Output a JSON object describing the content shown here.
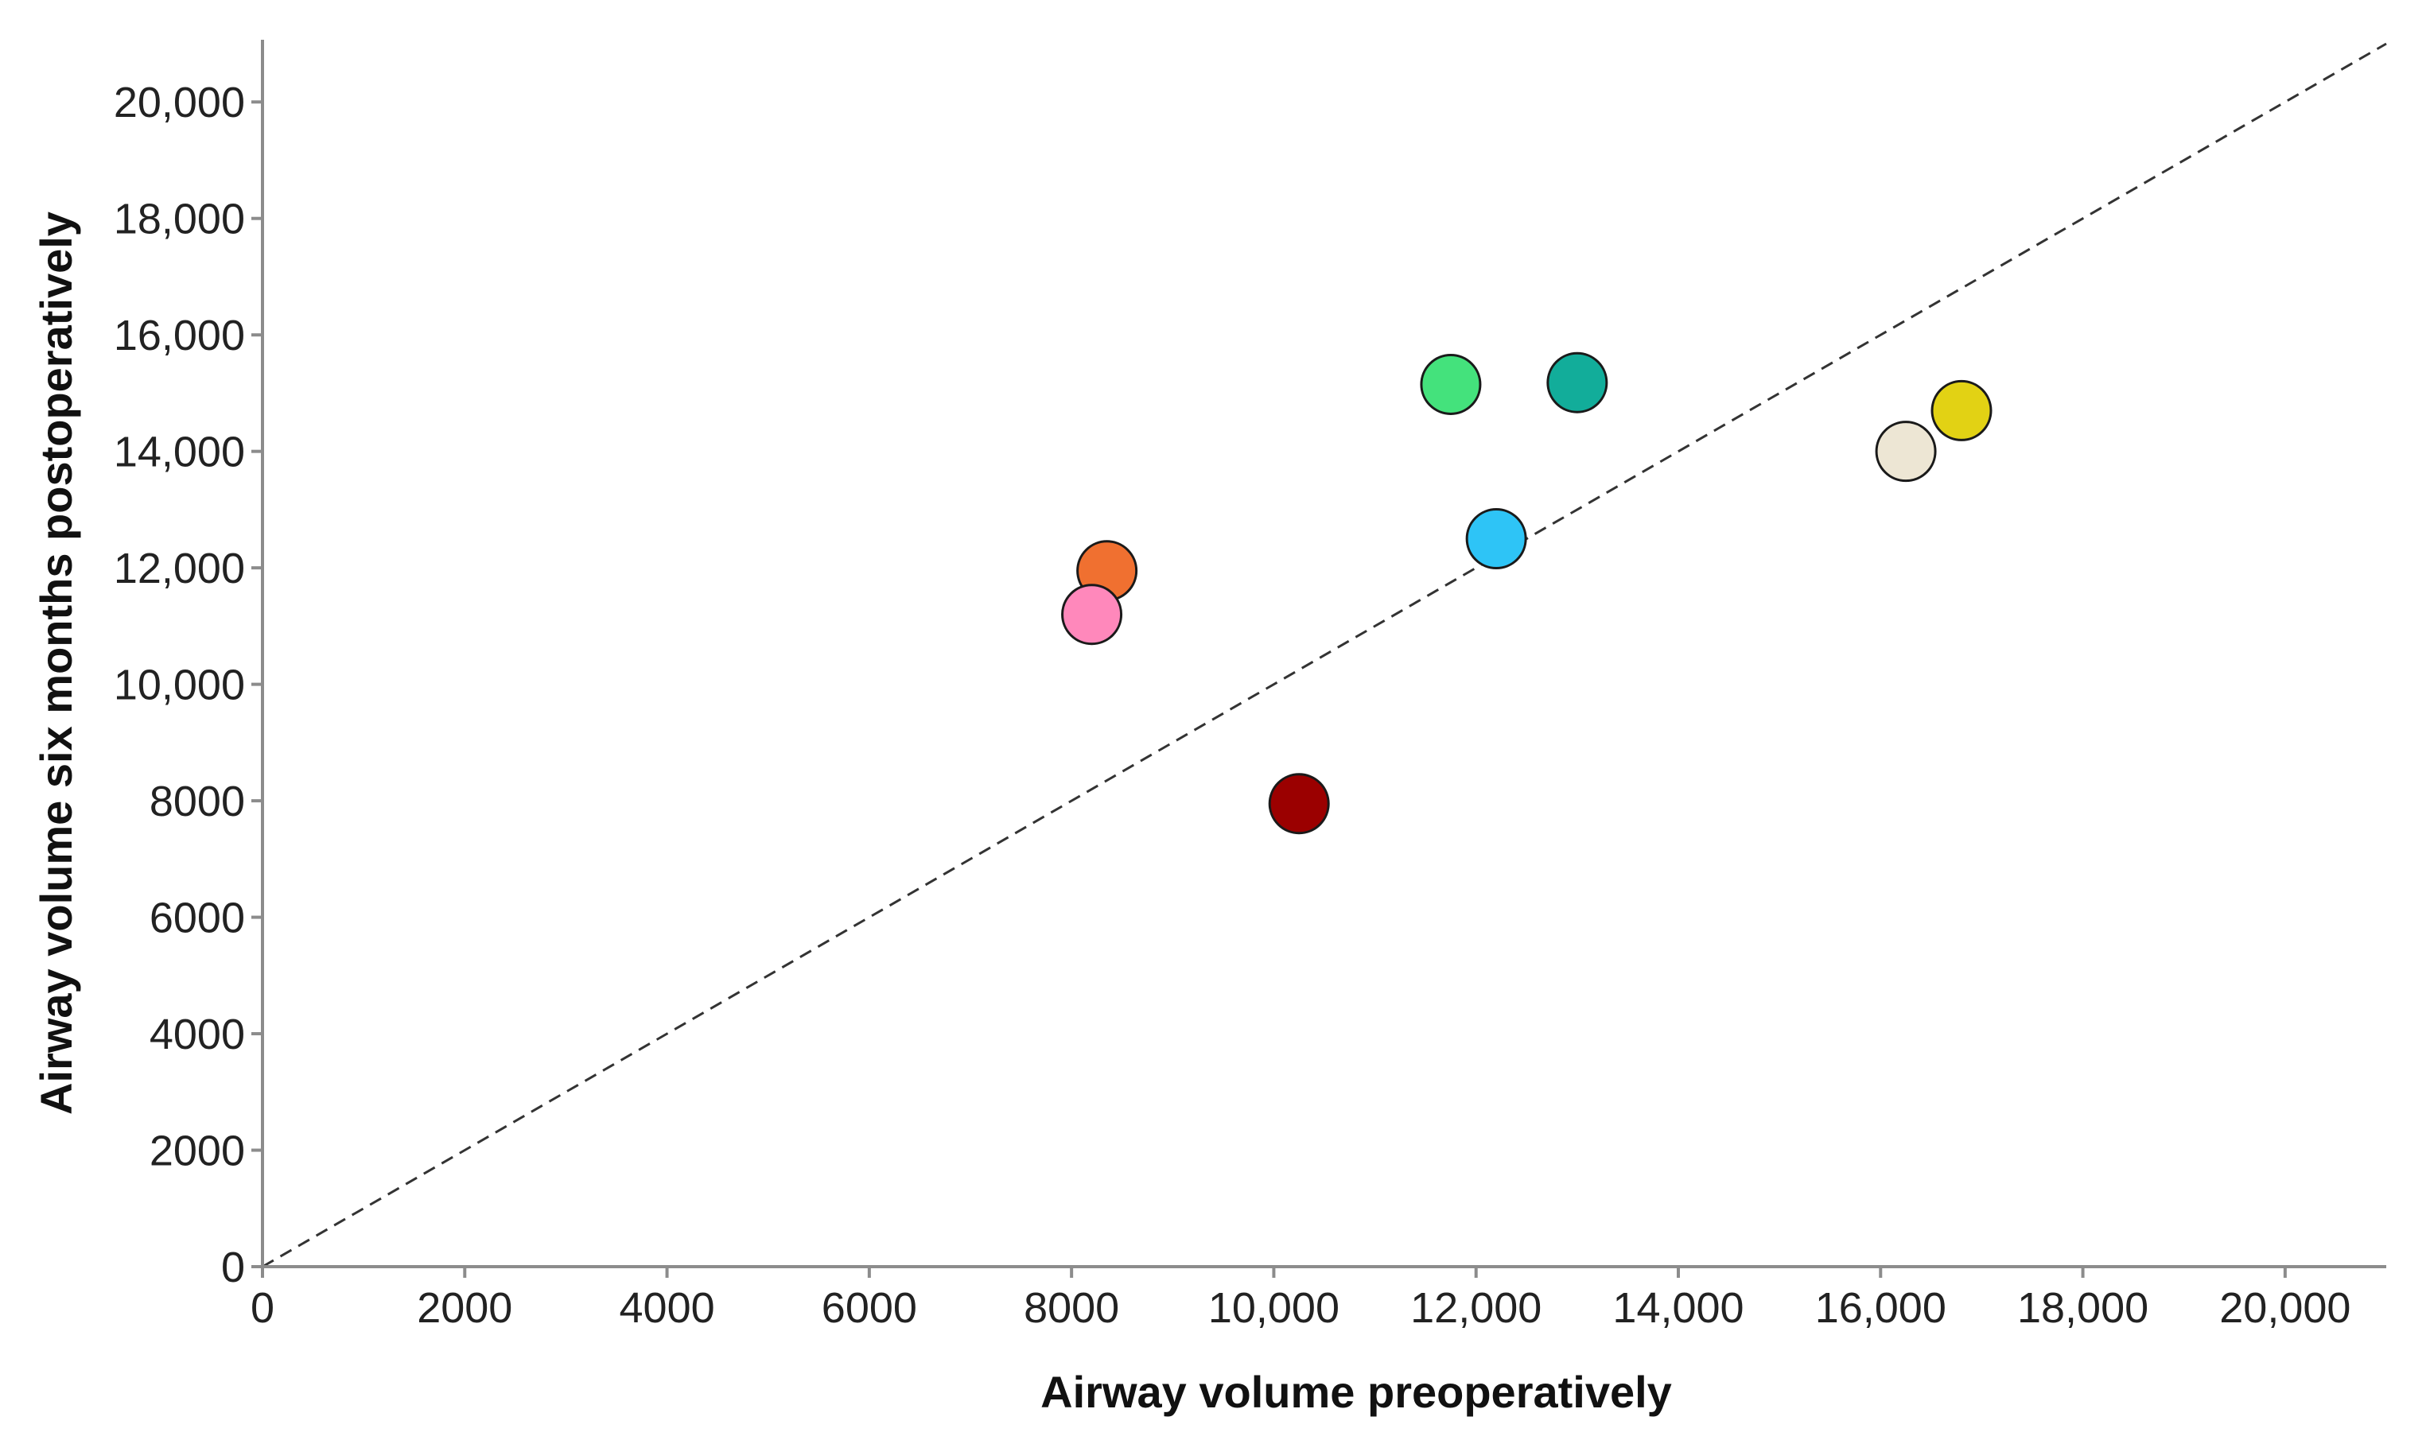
{
  "chart_data": {
    "type": "scatter",
    "title": "",
    "xlabel": "Airway volume preoperatively",
    "ylabel": "Airway volume six months postoperatively",
    "xlim": [
      0,
      21000
    ],
    "ylim": [
      0,
      21000
    ],
    "xticks": [
      {
        "value": 0,
        "label": "0"
      },
      {
        "value": 2000,
        "label": "2000"
      },
      {
        "value": 4000,
        "label": "4000"
      },
      {
        "value": 6000,
        "label": "6000"
      },
      {
        "value": 8000,
        "label": "8000"
      },
      {
        "value": 10000,
        "label": "10,000"
      },
      {
        "value": 12000,
        "label": "12,000"
      },
      {
        "value": 14000,
        "label": "14,000"
      },
      {
        "value": 16000,
        "label": "16,000"
      },
      {
        "value": 18000,
        "label": "18,000"
      },
      {
        "value": 20000,
        "label": "20,000"
      }
    ],
    "yticks": [
      {
        "value": 0,
        "label": "0"
      },
      {
        "value": 2000,
        "label": "2000"
      },
      {
        "value": 4000,
        "label": "4000"
      },
      {
        "value": 6000,
        "label": "6000"
      },
      {
        "value": 8000,
        "label": "8000"
      },
      {
        "value": 10000,
        "label": "10,000"
      },
      {
        "value": 12000,
        "label": "12,000"
      },
      {
        "value": 14000,
        "label": "14,000"
      },
      {
        "value": 16000,
        "label": "16,000"
      },
      {
        "value": 18000,
        "label": "18,000"
      },
      {
        "value": 20000,
        "label": "20,000"
      }
    ],
    "reference_line": {
      "type": "identity",
      "style": "dashed",
      "x": [
        0,
        21000
      ],
      "y": [
        0,
        21000
      ]
    },
    "grid": false,
    "points": [
      {
        "x": 8350,
        "y": 11950,
        "color": "#f07030"
      },
      {
        "x": 8200,
        "y": 11200,
        "color": "#ff88bb"
      },
      {
        "x": 10250,
        "y": 7950,
        "color": "#9b0000"
      },
      {
        "x": 11750,
        "y": 15150,
        "color": "#44e27c"
      },
      {
        "x": 12200,
        "y": 12500,
        "color": "#2ec4f6"
      },
      {
        "x": 13000,
        "y": 15180,
        "color": "#12ad9a"
      },
      {
        "x": 16250,
        "y": 14000,
        "color": "#ede6d4"
      },
      {
        "x": 16800,
        "y": 14700,
        "color": "#e2d214"
      }
    ]
  }
}
